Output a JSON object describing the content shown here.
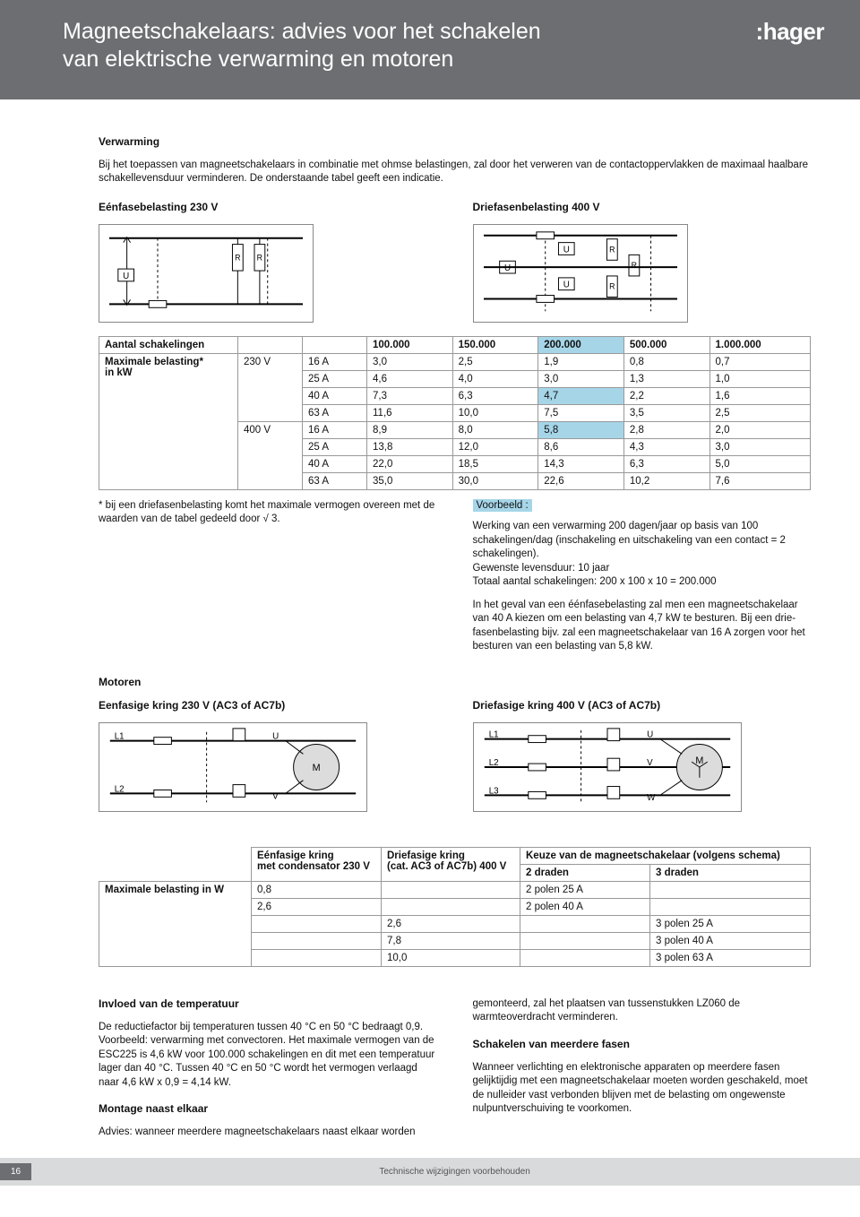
{
  "header": {
    "title_line1": "Magneetschakelaars: advies voor het schakelen",
    "title_line2": "van elektrische verwarming en motoren",
    "logo": ":hager"
  },
  "verwarming": {
    "heading": "Verwarming",
    "intro": "Bij het toepassen van magneetschakelaars in combinatie met ohmse belastingen, zal door het verweren van de contactoppervlakken de maximaal haalbare schakellevensduur verminderen. De onderstaande tabel geeft een indicatie.",
    "single_label": "Eénfasebelasting 230 V",
    "three_label": "Driefasenbelasting 400 V"
  },
  "table1": {
    "h_aantal": "Aantal schakelingen",
    "h_max": "Maximale belasting*",
    "h_max2": "in kW",
    "cols": [
      "100.000",
      "150.000",
      "200.000",
      "500.000",
      "1.000.000"
    ],
    "v230": "230 V",
    "v400": "400 V",
    "r230": [
      {
        "amp": "16 A",
        "v": [
          "3,0",
          "2,5",
          "1,9",
          "0,8",
          "0,7"
        ]
      },
      {
        "amp": "25 A",
        "v": [
          "4,6",
          "4,0",
          "3,0",
          "1,3",
          "1,0"
        ]
      },
      {
        "amp": "40 A",
        "v": [
          "7,3",
          "6,3",
          "4,7",
          "2,2",
          "1,6"
        ]
      },
      {
        "amp": "63 A",
        "v": [
          "11,6",
          "10,0",
          "7,5",
          "3,5",
          "2,5"
        ]
      }
    ],
    "r400": [
      {
        "amp": "16 A",
        "v": [
          "8,9",
          "8,0",
          "5,8",
          "2,8",
          "2,0"
        ]
      },
      {
        "amp": "25 A",
        "v": [
          "13,8",
          "12,0",
          "8,6",
          "4,3",
          "3,0"
        ]
      },
      {
        "amp": "40 A",
        "v": [
          "22,0",
          "18,5",
          "14,3",
          "6,3",
          "5,0"
        ]
      },
      {
        "amp": "63 A",
        "v": [
          "35,0",
          "30,0",
          "22,6",
          "10,2",
          "7,6"
        ]
      }
    ]
  },
  "footnote": "* bij een driefasenbelasting komt het maximale vermogen overeen met de waarden van de tabel gedeeld door √ 3.",
  "voorbeeld": {
    "label": "Voorbeeld :",
    "p1": "Werking van een verwarming 200 dagen/jaar op basis van 100 schakelingen/dag (inschakeling en uitschakeling van een contact = 2 schakelingen).",
    "p2": "Gewenste levensduur: 10 jaar",
    "p3": "Totaal aantal schakelingen: 200 x 100 x 10 = 200.000",
    "p4": "In het geval van een éénfasebelasting zal men een magneetschakelaar van 40 A kiezen om een belasting van 4,7 kW te besturen. Bij een drie-fasenbelasting bijv. zal een magneetschakelaar van 16 A zorgen voor het besturen van een belasting van 5,8 kW."
  },
  "motoren": {
    "heading": "Motoren",
    "single": "Eenfasige kring 230 V (AC3 of AC7b)",
    "three": "Driefasige kring 400 V (AC3 of AC7b)"
  },
  "table2": {
    "h1a": "Eénfasige kring",
    "h1b": "met condensator 230 V",
    "h2a": "Driefasige kring",
    "h2b": "(cat. AC3 of AC7b) 400 V",
    "h3": "Keuze van de magneetschakelaar (volgens schema)",
    "h3a": "2 draden",
    "h3b": "3 draden",
    "rowlabel": "Maximale belasting in W",
    "rows": [
      {
        "c1": "0,8",
        "c2": "",
        "c3": "2 polen 25 A",
        "c4": ""
      },
      {
        "c1": "2,6",
        "c2": "",
        "c3": "2 polen 40 A",
        "c4": ""
      },
      {
        "c1": "",
        "c2": "2,6",
        "c3": "",
        "c4": "3 polen 25 A"
      },
      {
        "c1": "",
        "c2": "7,8",
        "c3": "",
        "c4": "3 polen 40 A"
      },
      {
        "c1": "",
        "c2": "10,0",
        "c3": "",
        "c4": "3 polen 63 A"
      }
    ]
  },
  "temp": {
    "h": "Invloed van de temperatuur",
    "t": "De reductiefactor bij temperaturen tussen 40 °C en 50 °C bedraagt 0,9. Voorbeeld: verwarming met convectoren. Het maximale vermogen van de ESC225 is 4,6 kW voor 100.000 schakelingen en dit met een temperatuur lager dan 40 °C. Tussen 40 °C en 50 °C wordt het vermogen verlaagd naar 4,6 kW x 0,9 = 4,14 kW."
  },
  "montage": {
    "h": "Montage naast elkaar",
    "t1": "Advies: wanneer meerdere magneetschakelaars naast elkaar worden",
    "t2": "gemonteerd, zal het plaatsen van tussenstukken LZ060 de warmteoverdracht verminderen."
  },
  "fasen": {
    "h": "Schakelen van meerdere fasen",
    "t": "Wanneer verlichting en elektronische apparaten op meerdere fasen gelijktijdig met een magneetschakelaar moeten worden geschakeld, moet de nulleider vast verbonden blijven met de belasting om ongewenste nulpuntverschuiving te voorkomen."
  },
  "footer": {
    "page": "16",
    "text": "Technische wijzigingen voorbehouden"
  }
}
